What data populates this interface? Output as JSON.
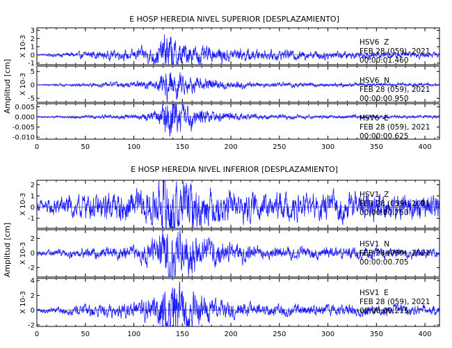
{
  "colors": {
    "trace": "#1a1aff",
    "axis": "#000000",
    "background": "#ffffff"
  },
  "chart_data": [
    {
      "type": "line",
      "title": "E HOSP HEREDIA NIVEL SUPERIOR [DESPLAZAMIENTO]",
      "ylabel": "Amplitud [cm]",
      "xlim": [
        0,
        415
      ],
      "xticks": [
        "0",
        "50",
        "100",
        "150",
        "200",
        "250",
        "300",
        "350",
        "400"
      ],
      "channels": [
        {
          "name": "HSV6  Z",
          "date": "FEB 28 (059), 2021",
          "time": "00:00:01.460",
          "scale_label": "X 10-3",
          "ylim": [
            -1.2,
            3.3
          ],
          "yticks": [
            "3",
            "2",
            "1",
            "0",
            "-1"
          ],
          "envelope": {
            "t": [
              0,
              20,
              60,
              100,
              125,
              135,
              140,
              150,
              165,
              185,
              230,
              300,
              360,
              415
            ],
            "a": [
              0.05,
              0.15,
              0.35,
              0.45,
              0.8,
              1.8,
              1.6,
              1.0,
              0.8,
              0.6,
              0.45,
              0.35,
              0.3,
              0.2
            ]
          }
        },
        {
          "name": "HSV6  N",
          "date": "FEB 28 (059), 2021",
          "time": "00:00:00.950",
          "scale_label": "X 10-3",
          "ylim": [
            -6.5,
            7
          ],
          "yticks": [
            "5",
            "0",
            "-5"
          ],
          "envelope": {
            "t": [
              0,
              20,
              60,
              100,
              125,
              135,
              140,
              150,
              165,
              185,
              230,
              300,
              360,
              415
            ],
            "a": [
              0.1,
              0.3,
              0.5,
              0.7,
              1.5,
              4.5,
              4.0,
              2.5,
              1.8,
              1.2,
              0.6,
              0.5,
              0.5,
              0.4
            ]
          }
        },
        {
          "name": "HSV6  E",
          "date": "FEB 28 (059), 2021",
          "time": "00:00:00.625",
          "scale_label": "",
          "ylim": [
            -0.011,
            0.0065
          ],
          "yticks": [
            "0.005",
            "0.000",
            "-0.005",
            "-0.010"
          ],
          "envelope": {
            "t": [
              0,
              20,
              60,
              100,
              125,
              135,
              140,
              150,
              165,
              185,
              230,
              300,
              360,
              415
            ],
            "a": [
              0.0002,
              0.0004,
              0.0006,
              0.0008,
              0.002,
              0.0085,
              0.007,
              0.0045,
              0.003,
              0.0018,
              0.0008,
              0.0006,
              0.0006,
              0.0005
            ]
          }
        }
      ]
    },
    {
      "type": "line",
      "title": "E HOSP HEREDIA NIVEL INFERIOR [DESPLAZAMIENTO]",
      "ylabel": "Amplitud [cm]",
      "xlim": [
        0,
        415
      ],
      "xticks": [
        "0",
        "50",
        "100",
        "150",
        "200",
        "250",
        "300",
        "350",
        "400"
      ],
      "channels": [
        {
          "name": "HSV1  Z",
          "date": "FEB 28 (059), 2021",
          "time": "00:00:00.750",
          "scale_label": "X 10-3",
          "ylim": [
            -1.9,
            2.4
          ],
          "yticks": [
            "2",
            "1",
            "0",
            "-1"
          ],
          "envelope": {
            "t": [
              0,
              20,
              60,
              100,
              125,
              135,
              140,
              150,
              165,
              185,
              230,
              300,
              360,
              415
            ],
            "a": [
              0.3,
              0.6,
              0.8,
              0.9,
              1.3,
              2.0,
              1.9,
              1.6,
              1.3,
              1.0,
              0.8,
              0.8,
              0.8,
              0.7
            ]
          }
        },
        {
          "name": "HSV1  N",
          "date": "FEB 28 (059), 2021",
          "time": "00:00:00.705",
          "scale_label": "X 10-3",
          "ylim": [
            -3.3,
            3.2
          ],
          "yticks": [
            "2",
            "0",
            "-2"
          ],
          "envelope": {
            "t": [
              0,
              20,
              60,
              100,
              125,
              135,
              140,
              150,
              165,
              185,
              230,
              300,
              360,
              415
            ],
            "a": [
              0.2,
              0.3,
              0.5,
              0.6,
              1.5,
              3.0,
              2.8,
              2.2,
              1.6,
              1.1,
              0.6,
              0.5,
              0.5,
              0.4
            ]
          }
        },
        {
          "name": "HSV1  E",
          "date": "FEB 28 (059), 2021",
          "time": "00:00:00.215",
          "scale_label": "X 10-3",
          "ylim": [
            -2.2,
            4.3
          ],
          "yticks": [
            "4",
            "2",
            "0",
            "-2"
          ],
          "envelope": {
            "t": [
              0,
              20,
              60,
              100,
              125,
              135,
              140,
              150,
              165,
              185,
              230,
              300,
              360,
              415
            ],
            "a": [
              0.2,
              0.3,
              0.6,
              0.7,
              1.5,
              3.5,
              3.0,
              2.2,
              1.5,
              1.0,
              0.6,
              0.5,
              0.5,
              0.4
            ]
          }
        }
      ]
    }
  ]
}
